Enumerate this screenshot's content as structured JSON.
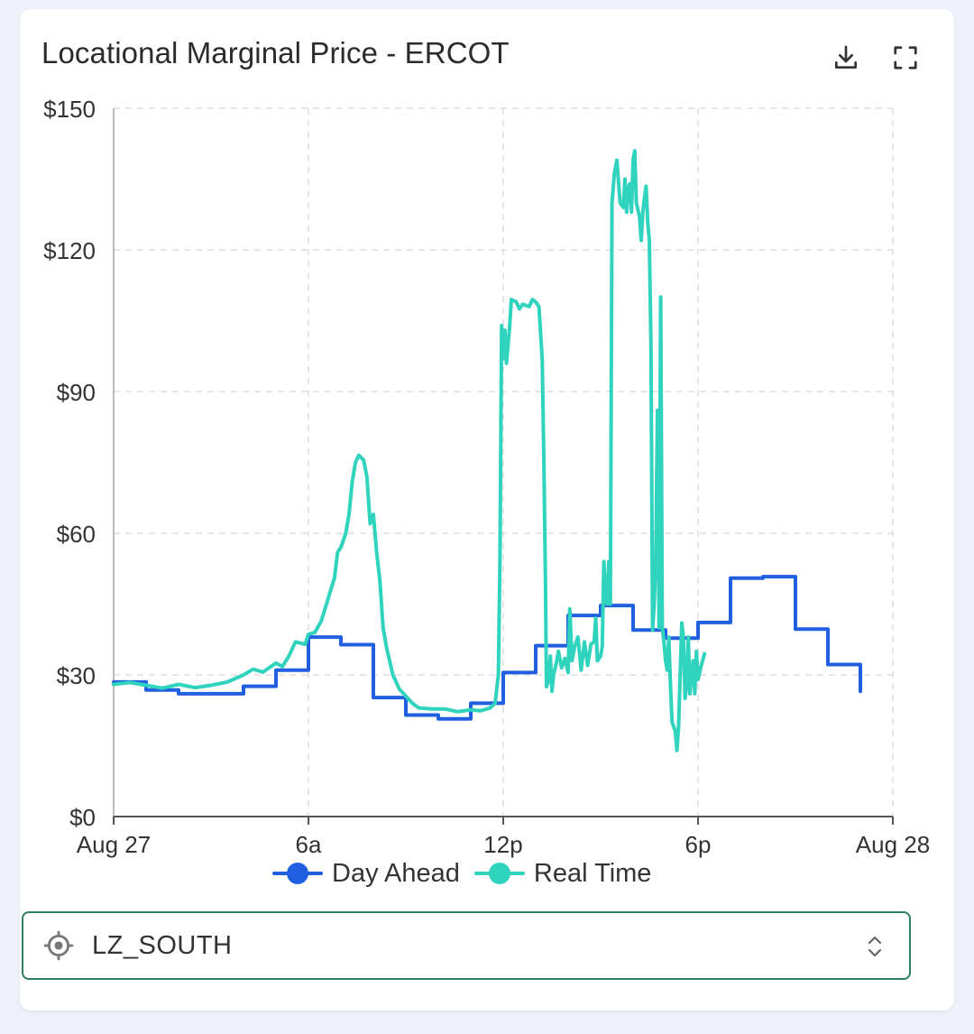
{
  "card": {
    "title": "Locational Marginal Price - ERCOT"
  },
  "toolbar": {
    "download_icon": "download-icon",
    "fullscreen_icon": "fullscreen-icon"
  },
  "selector": {
    "icon": "target-icon",
    "value": "LZ_SOUTH",
    "accent_color": "#2f7d62"
  },
  "chart_data": {
    "type": "line",
    "title": "Locational Marginal Price - ERCOT",
    "xlabel": "",
    "ylabel": "",
    "x_unit": "hours since Aug 27 00:00",
    "xlim": [
      0,
      24
    ],
    "ylim": [
      0,
      150
    ],
    "x_ticks": [
      {
        "value": 0,
        "label": "Aug 27"
      },
      {
        "value": 6,
        "label": "6a"
      },
      {
        "value": 12,
        "label": "12p"
      },
      {
        "value": 18,
        "label": "6p"
      },
      {
        "value": 24,
        "label": "Aug 28"
      }
    ],
    "y_ticks": [
      {
        "value": 0,
        "label": "$0"
      },
      {
        "value": 30,
        "label": "$30"
      },
      {
        "value": 60,
        "label": "$60"
      },
      {
        "value": 90,
        "label": "$90"
      },
      {
        "value": 120,
        "label": "$120"
      },
      {
        "value": 150,
        "label": "$150"
      }
    ],
    "grid": true,
    "legend_position": "bottom",
    "series": [
      {
        "name": "Day Ahead",
        "color": "#1f5fe0",
        "step": true,
        "points": [
          [
            0,
            28.5
          ],
          [
            1,
            26.8
          ],
          [
            2,
            26.0
          ],
          [
            3,
            26.0
          ],
          [
            4,
            27.6
          ],
          [
            5,
            31.0
          ],
          [
            6,
            38.0
          ],
          [
            7,
            36.4
          ],
          [
            8,
            25.2
          ],
          [
            9,
            21.5
          ],
          [
            10,
            20.7
          ],
          [
            11,
            24.0
          ],
          [
            12,
            30.5
          ],
          [
            13,
            36.2
          ],
          [
            14,
            42.6
          ],
          [
            15,
            44.7
          ],
          [
            16,
            39.5
          ],
          [
            17,
            37.8
          ],
          [
            18,
            41.1
          ],
          [
            19,
            50.5
          ],
          [
            20,
            50.8
          ],
          [
            21,
            39.7
          ],
          [
            22,
            32.2
          ],
          [
            23,
            26.5
          ]
        ],
        "end_x": 23.0
      },
      {
        "name": "Real Time",
        "color": "#2fd3be",
        "step": false,
        "points": [
          [
            0,
            28.0
          ],
          [
            0.5,
            28.4
          ],
          [
            1.0,
            27.8
          ],
          [
            1.5,
            27.2
          ],
          [
            2.0,
            28.0
          ],
          [
            2.5,
            27.3
          ],
          [
            3.0,
            27.8
          ],
          [
            3.5,
            28.5
          ],
          [
            4.0,
            30.0
          ],
          [
            4.3,
            31.2
          ],
          [
            4.6,
            30.6
          ],
          [
            5.0,
            32.5
          ],
          [
            5.2,
            31.8
          ],
          [
            5.4,
            34.0
          ],
          [
            5.6,
            37.0
          ],
          [
            5.9,
            36.5
          ],
          [
            6.0,
            38.6
          ],
          [
            6.2,
            39.0
          ],
          [
            6.4,
            41.5
          ],
          [
            6.6,
            46.0
          ],
          [
            6.8,
            50.5
          ],
          [
            6.9,
            56.0
          ],
          [
            7.0,
            57.0
          ],
          [
            7.15,
            60.0
          ],
          [
            7.25,
            64.0
          ],
          [
            7.35,
            71.0
          ],
          [
            7.45,
            75.0
          ],
          [
            7.55,
            76.5
          ],
          [
            7.7,
            75.5
          ],
          [
            7.8,
            72.0
          ],
          [
            7.9,
            62.0
          ],
          [
            8.0,
            64.0
          ],
          [
            8.1,
            56.0
          ],
          [
            8.2,
            50.0
          ],
          [
            8.3,
            40.0
          ],
          [
            8.4,
            36.0
          ],
          [
            8.5,
            33.0
          ],
          [
            8.6,
            30.0
          ],
          [
            8.8,
            27.0
          ],
          [
            9.0,
            25.5
          ],
          [
            9.2,
            24.0
          ],
          [
            9.4,
            23.0
          ],
          [
            9.8,
            22.8
          ],
          [
            10.2,
            22.8
          ],
          [
            10.6,
            22.2
          ],
          [
            11.0,
            22.6
          ],
          [
            11.3,
            22.4
          ],
          [
            11.6,
            23.0
          ],
          [
            11.75,
            24.0
          ],
          [
            11.85,
            30.0
          ],
          [
            11.9,
            55.0
          ],
          [
            11.95,
            104.0
          ],
          [
            12.0,
            97.0
          ],
          [
            12.05,
            103.0
          ],
          [
            12.1,
            96.0
          ],
          [
            12.2,
            104.0
          ],
          [
            12.25,
            109.5
          ],
          [
            12.4,
            109.0
          ],
          [
            12.5,
            107.5
          ],
          [
            12.6,
            108.5
          ],
          [
            12.8,
            108.0
          ],
          [
            12.9,
            109.5
          ],
          [
            13.0,
            109.0
          ],
          [
            13.1,
            108.0
          ],
          [
            13.2,
            97.0
          ],
          [
            13.25,
            76.0
          ],
          [
            13.3,
            50.0
          ],
          [
            13.33,
            27.5
          ],
          [
            13.4,
            29.0
          ],
          [
            13.45,
            34.0
          ],
          [
            13.5,
            26.5
          ],
          [
            13.55,
            30.0
          ],
          [
            13.65,
            33.0
          ],
          [
            13.7,
            35.0
          ],
          [
            13.8,
            31.5
          ],
          [
            13.9,
            33.5
          ],
          [
            14.0,
            30.5
          ],
          [
            14.05,
            44.0
          ],
          [
            14.12,
            33.0
          ],
          [
            14.2,
            36.0
          ],
          [
            14.3,
            38.0
          ],
          [
            14.4,
            31.0
          ],
          [
            14.5,
            37.0
          ],
          [
            14.6,
            32.0
          ],
          [
            14.7,
            36.5
          ],
          [
            14.8,
            37.0
          ],
          [
            14.85,
            42.0
          ],
          [
            14.9,
            33.0
          ],
          [
            15.0,
            34.0
          ],
          [
            15.05,
            36.0
          ],
          [
            15.1,
            54.0
          ],
          [
            15.15,
            46.0
          ],
          [
            15.2,
            45.0
          ],
          [
            15.25,
            54.0
          ],
          [
            15.3,
            45.0
          ],
          [
            15.35,
            130.0
          ],
          [
            15.42,
            136.0
          ],
          [
            15.5,
            139.0
          ],
          [
            15.6,
            130.0
          ],
          [
            15.7,
            129.0
          ],
          [
            15.75,
            135.0
          ],
          [
            15.8,
            128.0
          ],
          [
            15.85,
            133.0
          ],
          [
            15.9,
            134.0
          ],
          [
            15.95,
            128.0
          ],
          [
            16.0,
            139.0
          ],
          [
            16.05,
            141.0
          ],
          [
            16.1,
            130.0
          ],
          [
            16.15,
            128.5
          ],
          [
            16.2,
            127.0
          ],
          [
            16.25,
            122.0
          ],
          [
            16.3,
            128.0
          ],
          [
            16.35,
            131.0
          ],
          [
            16.4,
            133.5
          ],
          [
            16.45,
            126.0
          ],
          [
            16.5,
            122.0
          ],
          [
            16.55,
            100.0
          ],
          [
            16.6,
            39.5
          ],
          [
            16.65,
            45.0
          ],
          [
            16.7,
            55.0
          ],
          [
            16.75,
            86.0
          ],
          [
            16.8,
            40.0
          ],
          [
            16.85,
            110.0
          ],
          [
            16.9,
            40.0
          ],
          [
            16.95,
            37.0
          ],
          [
            17.0,
            33.0
          ],
          [
            17.05,
            31.0
          ],
          [
            17.1,
            38.0
          ],
          [
            17.15,
            28.0
          ],
          [
            17.2,
            20.0
          ],
          [
            17.3,
            18.0
          ],
          [
            17.35,
            14.0
          ],
          [
            17.4,
            19.0
          ],
          [
            17.45,
            30.0
          ],
          [
            17.5,
            41.0
          ],
          [
            17.55,
            38.0
          ],
          [
            17.6,
            25.0
          ],
          [
            17.65,
            28.0
          ],
          [
            17.7,
            38.0
          ],
          [
            17.75,
            26.0
          ],
          [
            17.8,
            30.0
          ],
          [
            17.85,
            33.0
          ],
          [
            17.9,
            26.0
          ],
          [
            17.95,
            35.0
          ],
          [
            18.0,
            29.0
          ],
          [
            18.1,
            32.0
          ],
          [
            18.2,
            34.5
          ]
        ]
      }
    ]
  }
}
